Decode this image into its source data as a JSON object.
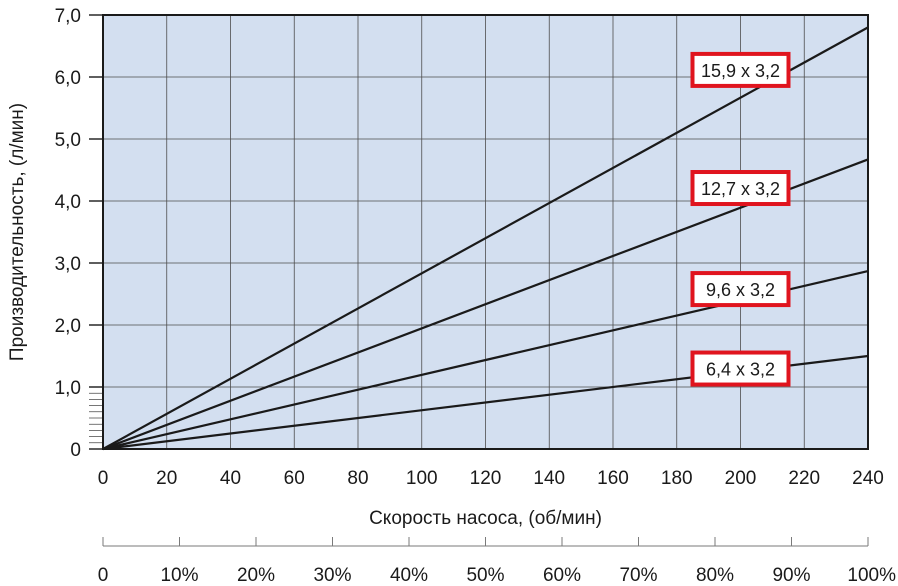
{
  "chart_data": {
    "type": "line",
    "xlabel": "Скорость насоса, (об/мин)",
    "ylabel": "Производительность, (л/мин)",
    "xlim": [
      0,
      240
    ],
    "ylim": [
      0,
      7
    ],
    "x_ticks": [
      "0",
      "20",
      "40",
      "60",
      "80",
      "100",
      "120",
      "140",
      "160",
      "180",
      "200",
      "220",
      "240"
    ],
    "y_ticks": [
      "0",
      "1,0",
      "2,0",
      "3,0",
      "4,0",
      "5,0",
      "6,0",
      "7,0"
    ],
    "percent_ticks": [
      "0",
      "10%",
      "20%",
      "30%",
      "40%",
      "50%",
      "60%",
      "70%",
      "80%",
      "90%",
      "100%"
    ],
    "grid": true,
    "colors": {
      "plot_background": "#d3dff0",
      "line": "#1a1a1a",
      "label_border": "#e0141e"
    },
    "series": [
      {
        "name": "15,9 x 3,2",
        "x": [
          0,
          240
        ],
        "y": [
          0,
          6.8
        ]
      },
      {
        "name": "12,7 x 3,2",
        "x": [
          0,
          240
        ],
        "y": [
          0,
          4.67
        ]
      },
      {
        "name": "9,6 x 3,2",
        "x": [
          0,
          240
        ],
        "y": [
          0,
          2.87
        ]
      },
      {
        "name": "6,4 x 3,2",
        "x": [
          0,
          240
        ],
        "y": [
          0,
          1.5
        ]
      }
    ]
  }
}
